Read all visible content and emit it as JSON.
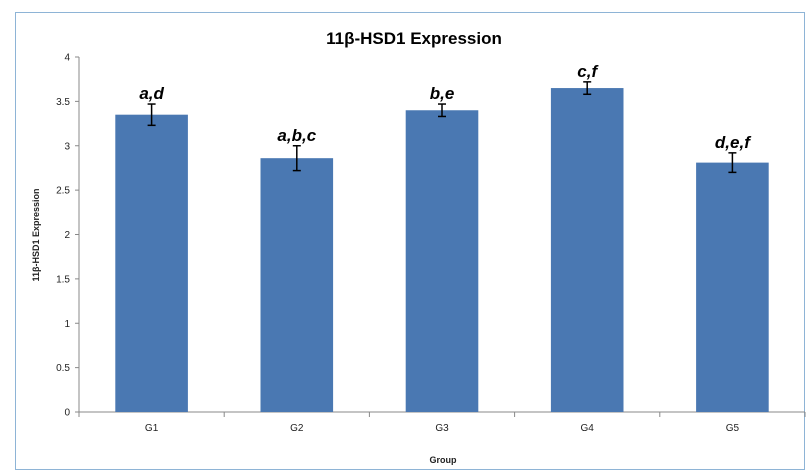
{
  "chart_data": {
    "type": "bar",
    "title": "11β-HSD1 Expression",
    "xlabel": "Group",
    "ylabel": "11β-HSD1 Expression",
    "categories": [
      "G1",
      "G2",
      "G3",
      "G4",
      "G5"
    ],
    "values": [
      3.35,
      2.86,
      3.4,
      3.65,
      2.81
    ],
    "error": [
      0.12,
      0.14,
      0.07,
      0.07,
      0.11
    ],
    "significance_letters": [
      "a,d",
      "a,b,c",
      "b,e",
      "c,f",
      "d,e,f"
    ],
    "ylim": [
      0,
      4
    ],
    "yticks": [
      "0",
      "0.5",
      "1",
      "1.5",
      "2",
      "2.5",
      "3",
      "3.5",
      "4"
    ],
    "bar_color": "#4a78b2",
    "error_bar_color": "#000000",
    "grid": false,
    "legend": "none"
  }
}
